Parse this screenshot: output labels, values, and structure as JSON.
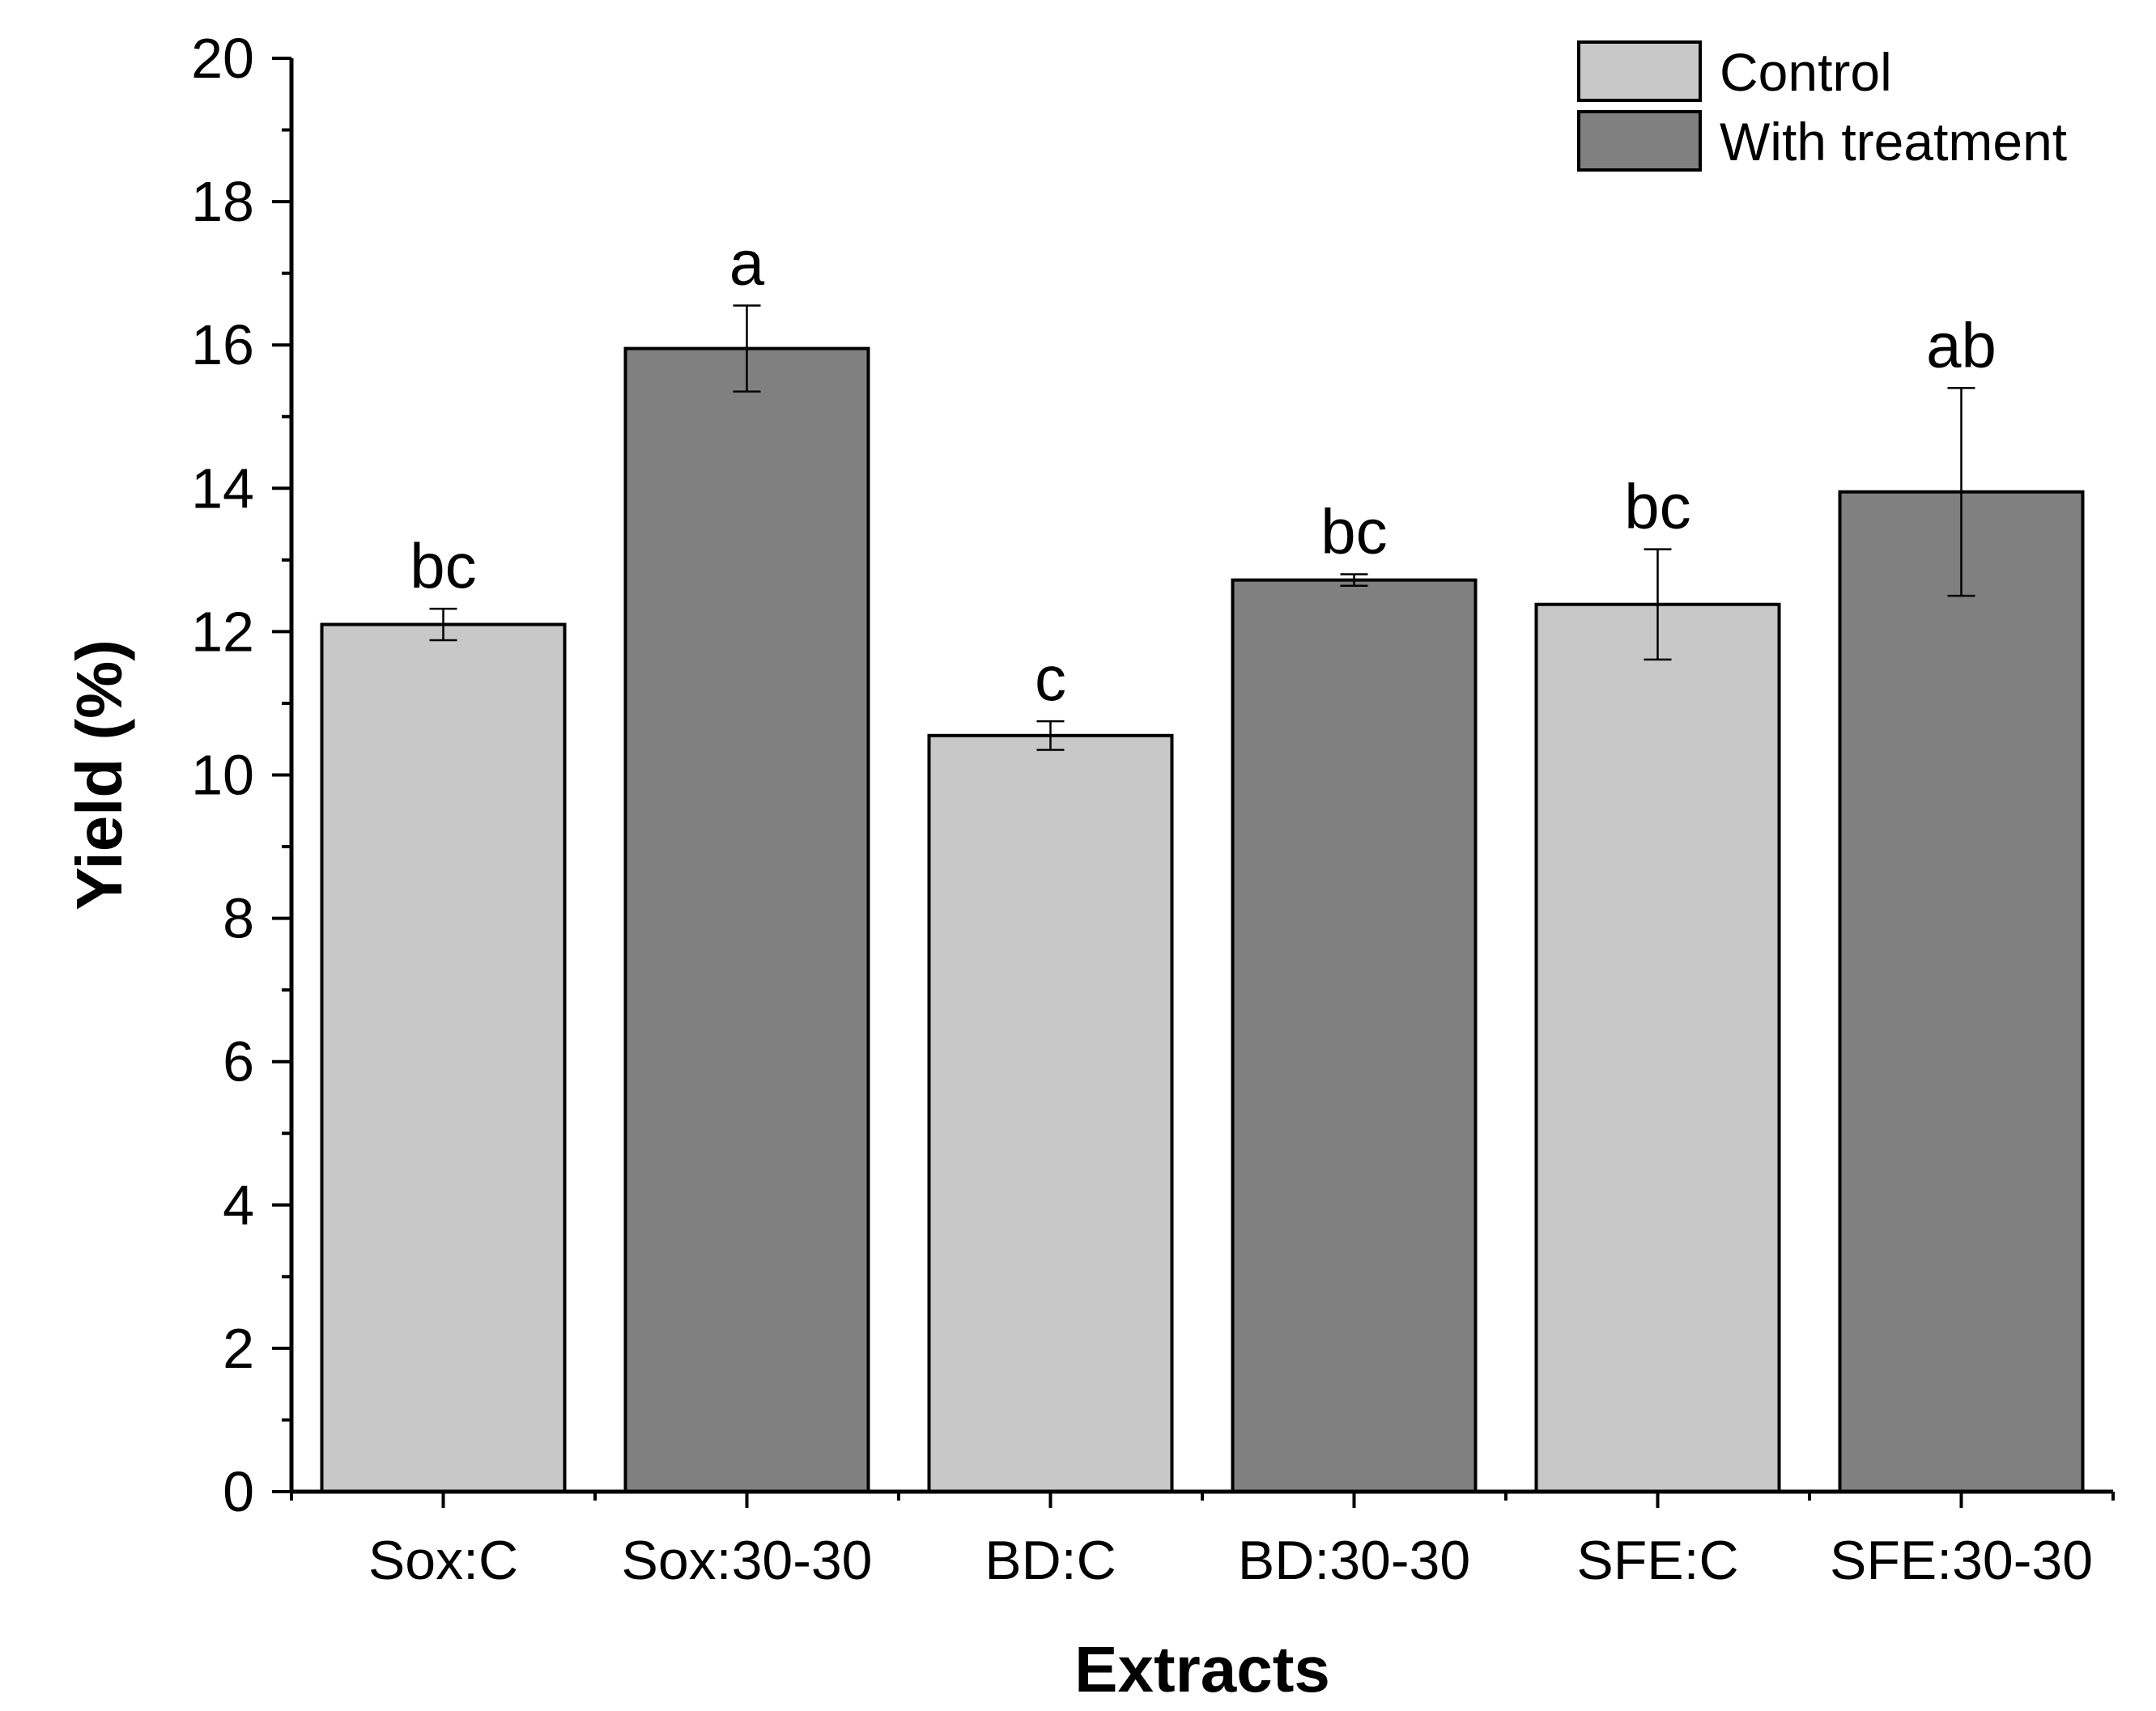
{
  "chart_data": {
    "type": "bar",
    "title": "",
    "xlabel": "Extracts",
    "ylabel": "Yield (%)",
    "ylim": [
      0,
      20
    ],
    "yticks": [
      0,
      2,
      4,
      6,
      8,
      10,
      12,
      14,
      16,
      18,
      20
    ],
    "categories": [
      "Sox:C",
      "Sox:30-30",
      "BD:C",
      "BD:30-30",
      "SFE:C",
      "SFE:30-30"
    ],
    "values": [
      12.1,
      15.95,
      10.55,
      12.72,
      12.38,
      13.95
    ],
    "errors": [
      0.22,
      0.6,
      0.2,
      0.08,
      0.77,
      1.45
    ],
    "significance_letters": [
      "bc",
      "a",
      "c",
      "bc",
      "bc",
      "ab"
    ],
    "bar_series": [
      "Control",
      "With treatment",
      "Control",
      "With treatment",
      "Control",
      "With treatment"
    ],
    "legend": {
      "placement": "top-right",
      "entries": [
        {
          "name": "Control",
          "color": "#c8c8c8"
        },
        {
          "name": "With treatment",
          "color": "#808080"
        }
      ]
    },
    "grid": false
  }
}
